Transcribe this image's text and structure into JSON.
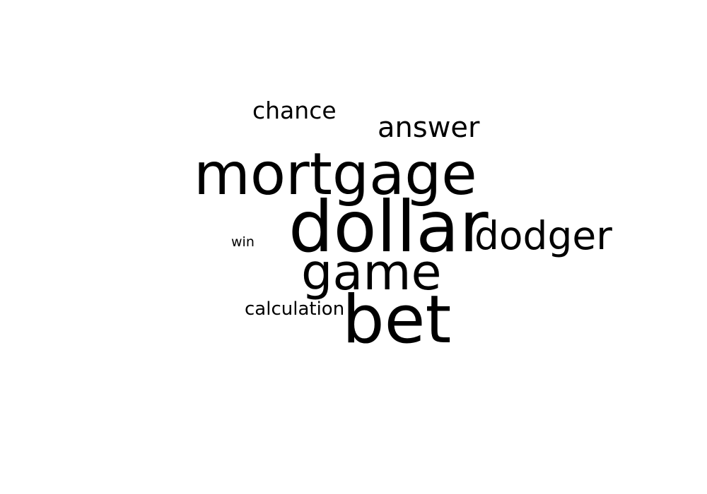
{
  "word_cloud": {
    "words": [
      {
        "id": "chance",
        "text": "chance"
      },
      {
        "id": "answer",
        "text": "answer"
      },
      {
        "id": "mortgage",
        "text": "mortgage"
      },
      {
        "id": "dollar",
        "text": "dollar"
      },
      {
        "id": "dodger",
        "text": "dodger"
      },
      {
        "id": "win",
        "text": "win"
      },
      {
        "id": "game",
        "text": "game"
      },
      {
        "id": "calculation",
        "text": "calculation"
      },
      {
        "id": "bet",
        "text": "bet"
      }
    ],
    "text_color": "#000000",
    "background_color": "#ffffff"
  }
}
